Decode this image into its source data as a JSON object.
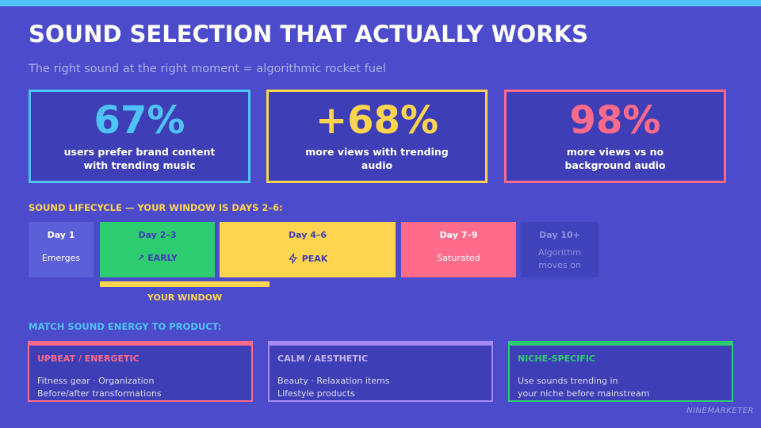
{
  "header": {
    "title": "SOUND SELECTION THAT ACTUALLY WORKS",
    "subtitle": "The right sound at the right moment = algorithmic rocket fuel"
  },
  "stats": [
    {
      "value": "67%",
      "label": "users prefer brand content with trending music"
    },
    {
      "value": "+68%",
      "label": "more views with trending audio"
    },
    {
      "value": "98%",
      "label": "more views vs no background audio"
    }
  ],
  "lifecycle": {
    "heading": "SOUND LIFECYCLE — YOUR WINDOW IS DAYS 2–6:",
    "stages": [
      {
        "day": "Day 1",
        "label": "Emerges"
      },
      {
        "day": "Day 2–3",
        "label": "↗ EARLY"
      },
      {
        "day": "Day 4–6",
        "label": "PEAK"
      },
      {
        "day": "Day 7–9",
        "label": "Saturated"
      },
      {
        "day": "Day 10+",
        "label": "Algorithm moves on"
      }
    ],
    "window": "YOUR WINDOW"
  },
  "match": {
    "heading": "MATCH SOUND ENERGY TO PRODUCT:",
    "cards": [
      {
        "title": "UPBEAT / ENERGETIC",
        "lines": [
          "Fitness gear · Organization",
          "Before/after transformations"
        ]
      },
      {
        "title": "CALM / AESTHETIC",
        "lines": [
          "Beauty · Relaxation items",
          "Lifestyle products"
        ]
      },
      {
        "title": "NICHE-SPECIFIC",
        "lines": [
          "Use sounds trending in",
          "your niche before mainstream"
        ]
      }
    ]
  },
  "footer": "NINEMARKETER"
}
